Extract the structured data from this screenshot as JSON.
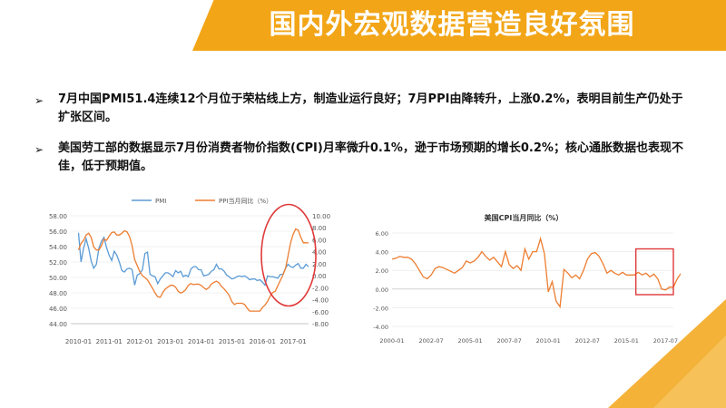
{
  "slide": {
    "title": "国内外宏观数据营造良好氛围",
    "bullets": [
      "7月中国PMI51.4连续12个月位于荣枯线上方，制造业运行良好；7月PPI由降转升，上涨0.2%，表明目前生产仍处于扩张区间。",
      "美国劳工部的数据显示7月份消费者物价指数(CPI)月率微升0.1%，逊于市场预期的增长0.2%；核心通胀数据也表现不佳，低于预期值。"
    ],
    "bullet_marker": "➢",
    "colors": {
      "accent": "#f2a516",
      "pmi": "#5b9bd5",
      "ppi": "#ed7d31",
      "cpi": "#ed7d31",
      "highlight_red": "#e03a3a"
    }
  },
  "chart_data": [
    {
      "type": "line",
      "title": "",
      "legend": [
        "PMI",
        "PPI当月同比（%）"
      ],
      "legend_position": "top",
      "x_tick_labels": [
        "2010-01",
        "2011-01",
        "2012-01",
        "2013-01",
        "2014-01",
        "2015-01",
        "2016-01",
        "2017-01"
      ],
      "y_left_ticks": [
        "58.00",
        "56.00",
        "54.00",
        "52.00",
        "50.00",
        "48.00",
        "46.00",
        "44.00"
      ],
      "y_right_ticks": [
        "10.00",
        "8.00",
        "6.00",
        "4.00",
        "2.00",
        "0.00",
        "-2.00",
        "-4.00",
        "-6.00",
        "-8.00"
      ],
      "ylim_left": [
        44,
        58
      ],
      "ylim_right": [
        -8,
        10
      ],
      "grid": true,
      "annotation": "red ellipse highlighting 2016-2017 rebound",
      "series": [
        {
          "name": "PMI",
          "axis": "left",
          "x_start": 2010.0,
          "x_step": 0.0833,
          "values": [
            55.8,
            52.0,
            53.8,
            55.0,
            53.8,
            52.1,
            51.2,
            51.7,
            53.8,
            54.7,
            55.2,
            53.9,
            52.9,
            52.2,
            53.4,
            52.9,
            52.0,
            50.9,
            50.7,
            51.1,
            51.2,
            51.0,
            49.0,
            50.3,
            50.5,
            51.0,
            53.1,
            53.3,
            50.4,
            50.2,
            50.1,
            49.2,
            49.8,
            50.2,
            50.6,
            50.6,
            50.4,
            50.1,
            50.9,
            50.6,
            50.8,
            50.1,
            50.3,
            50.1,
            51.1,
            51.4,
            51.4,
            51.0,
            51.0,
            50.2,
            50.3,
            50.4,
            50.8,
            51.0,
            51.7,
            51.1,
            51.1,
            50.8,
            50.3,
            50.1,
            49.8,
            49.9,
            50.1,
            50.2,
            50.1,
            50.2,
            50.0,
            49.7,
            49.8,
            49.8,
            49.6,
            49.7,
            49.4,
            49.0,
            50.2,
            50.1,
            50.1,
            50.0,
            49.9,
            50.4,
            50.4,
            51.2,
            51.7,
            51.4,
            51.3,
            51.6,
            51.8,
            51.2,
            51.2,
            51.7,
            51.4
          ]
        },
        {
          "name": "PPI当月同比（%）",
          "axis": "right",
          "x_start": 2010.0,
          "x_step": 0.0833,
          "values": [
            4.3,
            5.4,
            5.9,
            6.8,
            7.1,
            6.4,
            4.8,
            4.3,
            4.3,
            5.0,
            6.1,
            5.9,
            6.6,
            7.2,
            7.3,
            6.8,
            6.8,
            7.1,
            7.5,
            7.3,
            6.5,
            5.0,
            2.7,
            1.7,
            0.7,
            0.0,
            -0.3,
            -0.7,
            -1.4,
            -2.1,
            -2.9,
            -3.5,
            -3.6,
            -2.8,
            -2.2,
            -1.9,
            -1.6,
            -1.6,
            -1.9,
            -2.6,
            -2.9,
            -2.7,
            -2.3,
            -1.6,
            -1.3,
            -1.5,
            -1.4,
            -1.4,
            -1.6,
            -2.0,
            -2.3,
            -2.0,
            -1.4,
            -1.1,
            -0.9,
            -1.2,
            -1.8,
            -2.2,
            -2.7,
            -3.3,
            -4.3,
            -4.8,
            -4.6,
            -4.6,
            -4.6,
            -4.8,
            -5.4,
            -5.9,
            -5.9,
            -5.9,
            -5.9,
            -5.9,
            -5.3,
            -4.9,
            -4.3,
            -3.4,
            -2.8,
            -2.6,
            -1.7,
            -0.8,
            0.1,
            1.2,
            3.3,
            5.5,
            6.9,
            7.8,
            7.6,
            6.4,
            5.5,
            5.5,
            5.5
          ]
        }
      ]
    },
    {
      "type": "line",
      "title": "美国CPI当月同比（%）",
      "x_tick_labels": [
        "2000-01",
        "2002-07",
        "2005-01",
        "2007-07",
        "2010-01",
        "2012-07",
        "2015-01",
        "2017-07"
      ],
      "y_ticks": [
        "6.00",
        "4.00",
        "2.00",
        "0.00",
        "-2.00",
        "-4.00"
      ],
      "ylim": [
        -4,
        6
      ],
      "grid": true,
      "annotation": "red rectangle highlighting 2016-2017",
      "series": [
        {
          "name": "",
          "x_start": 2000.0,
          "x_step": 0.25,
          "values": [
            3.2,
            3.3,
            3.5,
            3.4,
            3.4,
            3.2,
            2.7,
            2.0,
            1.3,
            1.1,
            1.5,
            2.2,
            2.4,
            2.3,
            2.1,
            1.9,
            1.7,
            2.0,
            2.3,
            3.0,
            2.8,
            3.0,
            3.4,
            4.0,
            3.5,
            3.1,
            3.4,
            2.9,
            2.4,
            4.0,
            2.6,
            2.2,
            2.5,
            2.0,
            4.3,
            3.2,
            4.0,
            4.0,
            5.4,
            3.8,
            -0.3,
            0.8,
            -1.3,
            -1.9,
            2.1,
            1.7,
            1.2,
            1.5,
            1.1,
            2.0,
            3.2,
            3.8,
            3.9,
            3.5,
            2.7,
            1.7,
            2.0,
            1.7,
            1.5,
            1.8,
            1.5,
            1.5,
            1.5,
            1.8,
            1.5,
            1.7,
            1.3,
            1.6,
            1.1,
            0.0,
            -0.1,
            0.2,
            0.2,
            1.1,
            1.7,
            1.8,
            2.0,
            2.7,
            2.4,
            1.6,
            1.7
          ]
        }
      ]
    }
  ]
}
